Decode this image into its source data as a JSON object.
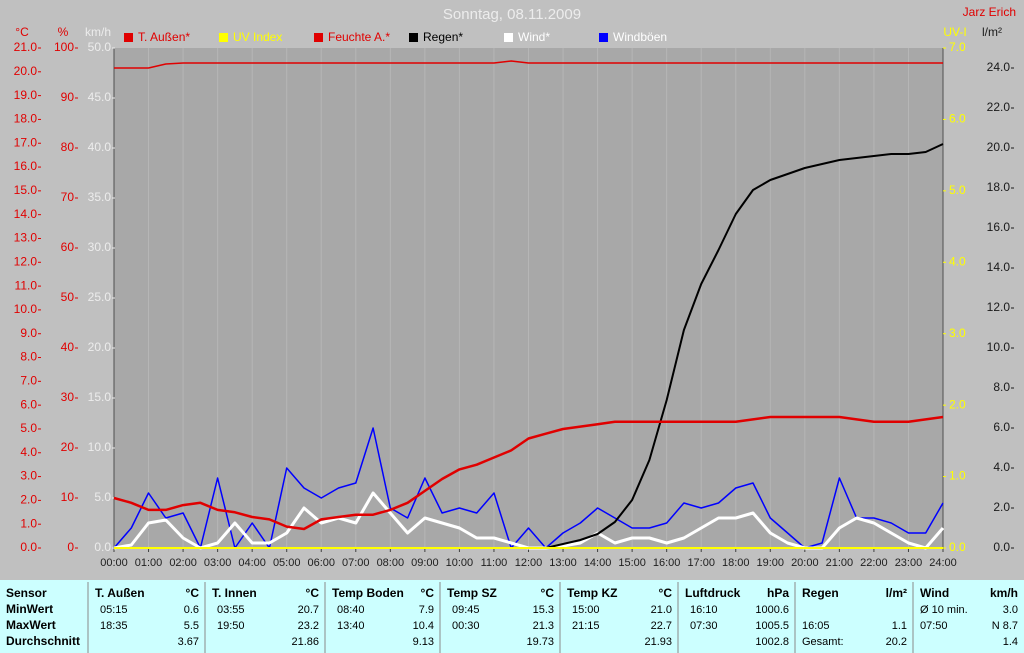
{
  "chart_data": {
    "type": "line",
    "title": "Sonntag, 08.11.2009",
    "author": "Jarz Erich",
    "x": [
      0,
      0.5,
      1,
      1.5,
      2,
      2.5,
      3,
      3.5,
      4,
      4.5,
      5,
      5.5,
      6,
      6.5,
      7,
      7.5,
      8,
      8.5,
      9,
      9.5,
      10,
      10.5,
      11,
      11.5,
      12,
      12.5,
      13,
      13.5,
      14,
      14.5,
      15,
      15.5,
      16,
      16.5,
      17,
      17.5,
      18,
      18.5,
      19,
      19.5,
      20,
      20.5,
      21,
      21.5,
      22,
      22.5,
      23,
      23.5,
      24
    ],
    "xlim": [
      0,
      24
    ],
    "xticks": [
      {
        "value": 0,
        "label": "00:00"
      },
      {
        "value": 1,
        "label": "01:00"
      },
      {
        "value": 2,
        "label": "02:00"
      },
      {
        "value": 3,
        "label": "03:00"
      },
      {
        "value": 4,
        "label": "04:00"
      },
      {
        "value": 5,
        "label": "05:00"
      },
      {
        "value": 6,
        "label": "06:00"
      },
      {
        "value": 7,
        "label": "07:00"
      },
      {
        "value": 8,
        "label": "08:00"
      },
      {
        "value": 9,
        "label": "09:00"
      },
      {
        "value": 10,
        "label": "10:00"
      },
      {
        "value": 11,
        "label": "11:00"
      },
      {
        "value": 12,
        "label": "12:00"
      },
      {
        "value": 13,
        "label": "13:00"
      },
      {
        "value": 14,
        "label": "14:00"
      },
      {
        "value": 15,
        "label": "15:00"
      },
      {
        "value": 16,
        "label": "16:00"
      },
      {
        "value": 17,
        "label": "17:00"
      },
      {
        "value": 18,
        "label": "18:00"
      },
      {
        "value": 19,
        "label": "19:00"
      },
      {
        "value": 20,
        "label": "20:00"
      },
      {
        "value": 21,
        "label": "21:00"
      },
      {
        "value": 22,
        "label": "22:00"
      },
      {
        "value": 23,
        "label": "23:00"
      },
      {
        "value": 24,
        "label": "24:00"
      }
    ],
    "grid": true,
    "axes": [
      {
        "label": "°C",
        "color": "#e00000",
        "lim": [
          0,
          21
        ],
        "ticks": [
          {
            "value": 0,
            "label": "0.0"
          },
          {
            "value": 1,
            "label": "1.0"
          },
          {
            "value": 2,
            "label": "2.0"
          },
          {
            "value": 3,
            "label": "3.0"
          },
          {
            "value": 4,
            "label": "4.0"
          },
          {
            "value": 5,
            "label": "5.0"
          },
          {
            "value": 6,
            "label": "6.0"
          },
          {
            "value": 7,
            "label": "7.0"
          },
          {
            "value": 8,
            "label": "8.0"
          },
          {
            "value": 9,
            "label": "9.0"
          },
          {
            "value": 10,
            "label": "10.0"
          },
          {
            "value": 11,
            "label": "11.0"
          },
          {
            "value": 12,
            "label": "12.0"
          },
          {
            "value": 13,
            "label": "13.0"
          },
          {
            "value": 14,
            "label": "14.0"
          },
          {
            "value": 15,
            "label": "15.0"
          },
          {
            "value": 16,
            "label": "16.0"
          },
          {
            "value": 17,
            "label": "17.0"
          },
          {
            "value": 18,
            "label": "18.0"
          },
          {
            "value": 19,
            "label": "19.0"
          },
          {
            "value": 20,
            "label": "20.0"
          },
          {
            "value": 21,
            "label": "21.0"
          }
        ]
      },
      {
        "label": "%",
        "color": "#e00000",
        "lim": [
          0,
          100
        ],
        "ticks": [
          0,
          10,
          20,
          30,
          40,
          50,
          60,
          70,
          80,
          90,
          100
        ]
      },
      {
        "label": "km/h",
        "color": "#ececec",
        "lim": [
          0,
          50
        ],
        "ticks": [
          {
            "value": 0,
            "label": "0.0"
          },
          {
            "value": 5,
            "label": "5.0"
          },
          {
            "value": 10,
            "label": "10.0"
          },
          {
            "value": 15,
            "label": "15.0"
          },
          {
            "value": 20,
            "label": "20.0"
          },
          {
            "value": 25,
            "label": "25.0"
          },
          {
            "value": 30,
            "label": "30.0"
          },
          {
            "value": 35,
            "label": "35.0"
          },
          {
            "value": 40,
            "label": "40.0"
          },
          {
            "value": 45,
            "label": "45.0"
          },
          {
            "value": 50,
            "label": "50.0"
          }
        ]
      },
      {
        "label": "UV-I",
        "color": "#ffff00",
        "lim": [
          0,
          7
        ],
        "ticks": [
          {
            "value": 0,
            "label": "0.0"
          },
          {
            "value": 1,
            "label": "1.0"
          },
          {
            "value": 2,
            "label": "2.0"
          },
          {
            "value": 3,
            "label": "3.0"
          },
          {
            "value": 4,
            "label": "4.0"
          },
          {
            "value": 5,
            "label": "5.0"
          },
          {
            "value": 6,
            "label": "6.0"
          },
          {
            "value": 7,
            "label": "7.0"
          }
        ]
      },
      {
        "label": "l/m²",
        "color": "#1a1a1a",
        "lim": [
          0,
          25
        ],
        "ticks": [
          {
            "value": 0,
            "label": "0.0"
          },
          {
            "value": 2,
            "label": "2.0"
          },
          {
            "value": 4,
            "label": "4.0"
          },
          {
            "value": 6,
            "label": "6.0"
          },
          {
            "value": 8,
            "label": "8.0"
          },
          {
            "value": 10,
            "label": "10.0"
          },
          {
            "value": 12,
            "label": "12.0"
          },
          {
            "value": 14,
            "label": "14.0"
          },
          {
            "value": 16,
            "label": "16.0"
          },
          {
            "value": 18,
            "label": "18.0"
          },
          {
            "value": 20,
            "label": "20.0"
          },
          {
            "value": 22,
            "label": "22.0"
          },
          {
            "value": 24,
            "label": "24.0"
          }
        ]
      }
    ],
    "series": [
      {
        "name": "T. Außen*",
        "color": "#e00000",
        "legend_color": "#e00000",
        "axis": 0,
        "line_width": 2.5,
        "values": [
          2.1,
          1.9,
          1.6,
          1.6,
          1.8,
          1.9,
          1.6,
          1.5,
          1.3,
          1.2,
          0.9,
          0.8,
          1.2,
          1.3,
          1.4,
          1.4,
          1.6,
          1.9,
          2.4,
          2.9,
          3.3,
          3.5,
          3.8,
          4.1,
          4.6,
          4.8,
          5.0,
          5.1,
          5.2,
          5.3,
          5.3,
          5.3,
          5.3,
          5.3,
          5.3,
          5.3,
          5.3,
          5.4,
          5.5,
          5.5,
          5.5,
          5.5,
          5.5,
          5.4,
          5.3,
          5.3,
          5.3,
          5.4,
          5.5
        ]
      },
      {
        "name": "UV Index",
        "color": "#ffff00",
        "legend_color": "#ffff00",
        "axis": 3,
        "line_width": 2,
        "values": [
          0,
          0,
          0,
          0,
          0,
          0,
          0,
          0,
          0,
          0,
          0,
          0,
          0,
          0,
          0,
          0,
          0,
          0,
          0,
          0,
          0,
          0,
          0,
          0,
          0,
          0,
          0,
          0,
          0,
          0,
          0,
          0,
          0,
          0,
          0,
          0,
          0,
          0,
          0,
          0,
          0,
          0,
          0,
          0,
          0,
          0,
          0,
          0,
          0
        ]
      },
      {
        "name": "Feuchte A.*",
        "color": "#e00000",
        "legend_color": "#e00000",
        "axis": 1,
        "line_width": 1.5,
        "values": [
          96,
          96,
          96,
          96.8,
          97,
          97,
          97,
          97,
          97,
          97,
          97,
          97,
          97,
          97,
          97,
          97,
          97,
          97,
          97,
          97,
          97,
          97,
          97,
          97.4,
          97,
          97,
          97,
          97,
          97,
          97,
          97,
          97,
          97,
          97,
          97,
          97,
          97,
          97,
          97,
          97,
          97,
          97,
          97,
          97,
          97,
          97,
          97,
          97,
          97
        ]
      },
      {
        "name": "Regen*",
        "color": "#000000",
        "legend_color": "#000000",
        "axis": 4,
        "line_width": 2,
        "values": [
          0,
          0,
          0,
          0,
          0,
          0,
          0,
          0,
          0,
          0,
          0,
          0,
          0,
          0,
          0,
          0,
          0,
          0,
          0,
          0,
          0,
          0,
          0,
          0,
          0,
          0,
          0.2,
          0.4,
          0.7,
          1.3,
          2.4,
          4.4,
          7.4,
          10.9,
          13.2,
          14.9,
          16.7,
          17.9,
          18.4,
          18.7,
          19.0,
          19.2,
          19.4,
          19.5,
          19.6,
          19.7,
          19.7,
          19.8,
          20.2
        ]
      },
      {
        "name": "Wind*",
        "color": "#ffffff",
        "legend_color": "#ffffff",
        "axis": 2,
        "line_width": 3,
        "values": [
          0,
          0.3,
          2.5,
          2.8,
          1.0,
          0,
          0.5,
          2.5,
          0.5,
          0.5,
          1.5,
          4.0,
          2.5,
          3.0,
          2.5,
          5.5,
          3.5,
          1.5,
          3.0,
          2.5,
          2.0,
          1.0,
          1.0,
          0.5,
          0,
          0,
          0.2,
          0.5,
          1.5,
          0.5,
          1.0,
          1.0,
          0.5,
          1.0,
          2.0,
          3.0,
          3.0,
          3.5,
          1.5,
          0.5,
          0,
          0,
          2.0,
          3.0,
          2.5,
          1.5,
          0.5,
          0,
          2.0
        ]
      },
      {
        "name": "Windböen",
        "color": "#0000ff",
        "legend_color": "#ffffff",
        "axis": 2,
        "line_width": 1.5,
        "values": [
          0,
          2.0,
          5.5,
          3.0,
          3.5,
          0,
          7.0,
          0,
          2.5,
          0,
          8.0,
          6.0,
          5.0,
          6.0,
          6.5,
          12.0,
          4.0,
          3.0,
          7.0,
          3.5,
          4.0,
          3.5,
          5.5,
          0,
          2.0,
          0,
          1.5,
          2.5,
          4.0,
          3.0,
          2.0,
          2.0,
          2.5,
          4.5,
          4.0,
          4.5,
          6.0,
          6.5,
          3.0,
          1.5,
          0,
          0.5,
          7.0,
          3.0,
          3.0,
          2.5,
          1.5,
          1.5,
          4.5
        ]
      }
    ]
  },
  "table": {
    "header": "Sensor",
    "row_labels": [
      "MinWert",
      "MaxWert",
      "Durchschnitt"
    ],
    "columns": [
      {
        "name": "T. Außen",
        "unit": "°C",
        "rows": [
          [
            "05:15",
            "0.6"
          ],
          [
            "18:35",
            "5.5"
          ],
          [
            null,
            "3.67"
          ]
        ]
      },
      {
        "name": "T. Innen",
        "unit": "°C",
        "rows": [
          [
            "03:55",
            "20.7"
          ],
          [
            "19:50",
            "23.2"
          ],
          [
            null,
            "21.86"
          ]
        ]
      },
      {
        "name": "Temp Boden",
        "unit": "°C",
        "rows": [
          [
            "08:40",
            "7.9"
          ],
          [
            "13:40",
            "10.4"
          ],
          [
            null,
            "9.13"
          ]
        ]
      },
      {
        "name": "Temp SZ",
        "unit": "°C",
        "rows": [
          [
            "09:45",
            "15.3"
          ],
          [
            "00:30",
            "21.3"
          ],
          [
            null,
            "19.73"
          ]
        ]
      },
      {
        "name": "Temp KZ",
        "unit": "°C",
        "rows": [
          [
            "15:00",
            "21.0"
          ],
          [
            "21:15",
            "22.7"
          ],
          [
            null,
            "21.93"
          ]
        ]
      },
      {
        "name": "Luftdruck",
        "unit": "hPa",
        "rows": [
          [
            "16:10",
            "1000.6"
          ],
          [
            "07:30",
            "1005.5"
          ],
          [
            null,
            "1002.8"
          ]
        ]
      },
      {
        "name": "Regen",
        "unit": "l/m²",
        "rows": [
          [
            null,
            null
          ],
          [
            "16:05",
            "1.1"
          ],
          [
            "Gesamt:",
            "20.2"
          ]
        ]
      },
      {
        "name": "Wind",
        "unit": "km/h",
        "rows": [
          [
            "Ø 10 min.",
            "3.0"
          ],
          [
            "07:50",
            "N 8.7"
          ],
          [
            null,
            "1.4"
          ]
        ]
      }
    ]
  }
}
